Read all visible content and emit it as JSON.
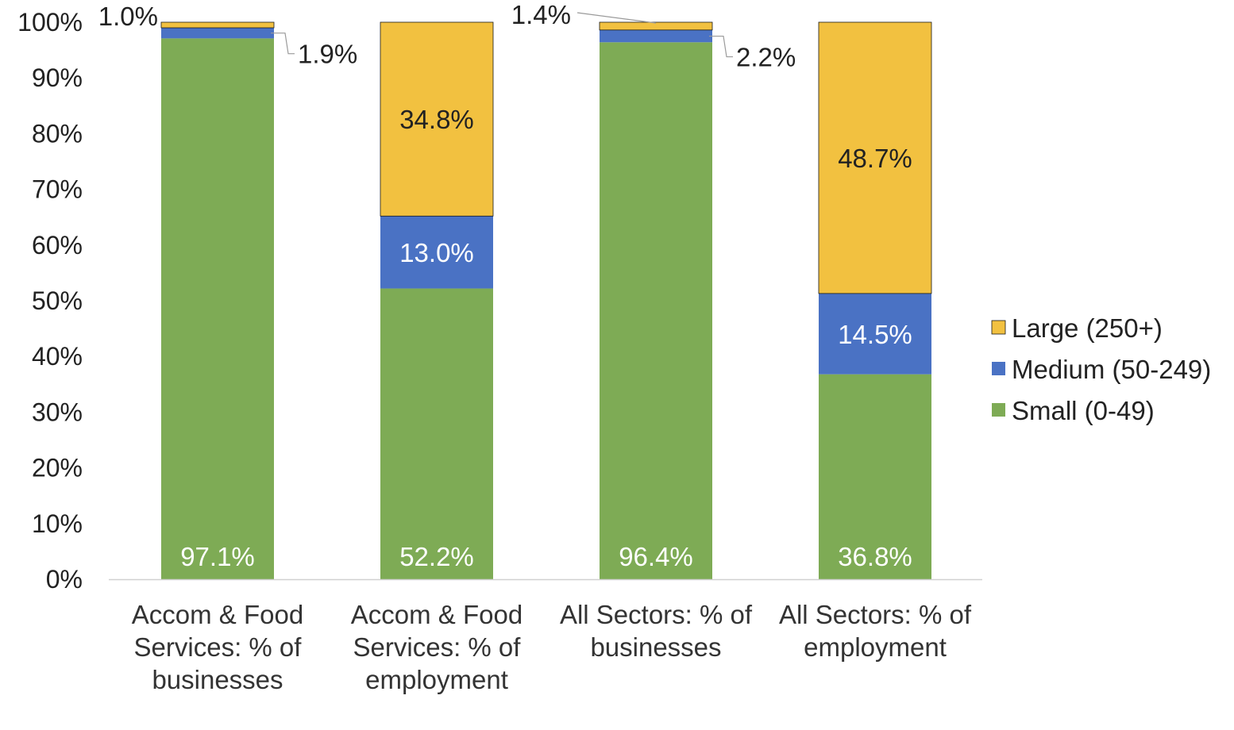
{
  "chart_data": {
    "type": "bar",
    "stacked": true,
    "categories": [
      [
        "Accom & Food",
        "Services: % of",
        "businesses"
      ],
      [
        "Accom & Food",
        "Services: % of",
        "employment"
      ],
      [
        "All Sectors: % of",
        "businesses"
      ],
      [
        "All Sectors: % of",
        "employment"
      ]
    ],
    "series": [
      {
        "name": "Small (0-49)",
        "color": "#7eab55",
        "values": [
          97.1,
          52.2,
          96.4,
          36.8
        ],
        "labels": [
          "97.1%",
          "52.2%",
          "96.4%",
          "36.8%"
        ]
      },
      {
        "name": "Medium (50-249)",
        "color": "#4a72c4",
        "values": [
          1.9,
          13.0,
          2.2,
          14.5
        ],
        "labels": [
          "1.9%",
          "13.0%",
          "2.2%",
          "14.5%"
        ]
      },
      {
        "name": "Large (250+)",
        "color": "#f2c140",
        "values": [
          1.0,
          34.8,
          1.4,
          48.7
        ],
        "labels": [
          "1.0%",
          "34.8%",
          "1.4%",
          "48.7%"
        ]
      }
    ],
    "yticks": [
      "0%",
      "10%",
      "20%",
      "30%",
      "40%",
      "50%",
      "60%",
      "70%",
      "80%",
      "90%",
      "100%"
    ],
    "ylim": [
      0,
      100
    ],
    "legend": {
      "position": "right",
      "entries": [
        "Large (250+)",
        "Medium (50-249)",
        "Small (0-49)"
      ]
    },
    "grid": false,
    "title": "",
    "xlabel": "",
    "ylabel": ""
  }
}
